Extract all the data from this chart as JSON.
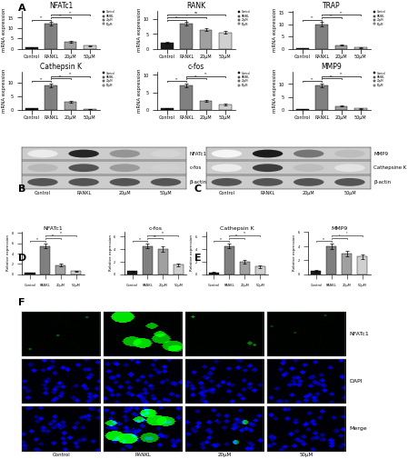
{
  "panel_A": {
    "charts": [
      {
        "title": "NFATc1",
        "ylabel": "mRNA expression",
        "categories": [
          "Control",
          "RANKL",
          "20μM",
          "50μM"
        ],
        "values": [
          0.5,
          12.0,
          3.5,
          1.5
        ],
        "errors": [
          0.1,
          0.8,
          0.4,
          0.2
        ],
        "colors": [
          "#1a1a1a",
          "#808080",
          "#a0a0a0",
          "#d0d0d0"
        ],
        "sig_lines": [
          [
            "Control",
            "RANKL",
            "**"
          ],
          [
            "RANKL",
            "20μM",
            "**"
          ],
          [
            "RANKL",
            "50μM",
            "**"
          ]
        ]
      },
      {
        "title": "RANK",
        "ylabel": "mRNA",
        "categories": [
          "Control",
          "RANKL",
          "20μM",
          "50μM"
        ],
        "values": [
          2.0,
          8.5,
          6.5,
          5.5
        ],
        "errors": [
          0.2,
          0.5,
          0.6,
          0.5
        ],
        "colors": [
          "#1a1a1a",
          "#808080",
          "#a0a0a0",
          "#d0d0d0"
        ],
        "sig_lines": [
          [
            "Control",
            "RANKL",
            "**"
          ],
          [
            "Control",
            "20μM",
            "*"
          ],
          [
            "Control",
            "50μM",
            "ns"
          ]
        ]
      },
      {
        "title": "TRAP",
        "ylabel": "mRNA",
        "categories": [
          "Control",
          "RANKL",
          "20μM",
          "50μM"
        ],
        "values": [
          0.3,
          10.0,
          1.5,
          0.5
        ],
        "errors": [
          0.05,
          0.9,
          0.2,
          0.1
        ],
        "colors": [
          "#1a1a1a",
          "#808080",
          "#a0a0a0",
          "#d0d0d0"
        ],
        "sig_lines": [
          [
            "Control",
            "RANKL",
            "**"
          ],
          [
            "RANKL",
            "20μM",
            "**"
          ],
          [
            "RANKL",
            "50μM",
            "**"
          ]
        ]
      },
      {
        "title": "Cathepsin K",
        "ylabel": "mRNA expression",
        "categories": [
          "Control",
          "RANKL",
          "20μM",
          "50μM"
        ],
        "values": [
          0.5,
          9.0,
          3.0,
          0.3
        ],
        "errors": [
          0.1,
          0.7,
          0.4,
          0.05
        ],
        "colors": [
          "#1a1a1a",
          "#808080",
          "#a0a0a0",
          "#d0d0d0"
        ],
        "sig_lines": [
          [
            "Control",
            "RANKL",
            "**"
          ],
          [
            "RANKL",
            "20μM",
            "**"
          ],
          [
            "RANKL",
            "50μM",
            "**"
          ]
        ]
      },
      {
        "title": "c-fos",
        "ylabel": "mRNA",
        "categories": [
          "Control",
          "RANKL",
          "20μM",
          "50μM"
        ],
        "values": [
          0.5,
          7.0,
          2.5,
          1.5
        ],
        "errors": [
          0.1,
          0.6,
          0.3,
          0.2
        ],
        "colors": [
          "#1a1a1a",
          "#808080",
          "#a0a0a0",
          "#d0d0d0"
        ],
        "sig_lines": [
          [
            "Control",
            "RANKL",
            "**"
          ],
          [
            "RANKL",
            "20μM",
            "**"
          ],
          [
            "RANKL",
            "50μM",
            "**"
          ]
        ]
      },
      {
        "title": "MMP9",
        "ylabel": "mRNA",
        "categories": [
          "Control",
          "RANKL",
          "20μM",
          "50μM"
        ],
        "values": [
          0.3,
          9.5,
          1.5,
          0.5
        ],
        "errors": [
          0.05,
          0.8,
          0.2,
          0.1
        ],
        "colors": [
          "#1a1a1a",
          "#808080",
          "#a0a0a0",
          "#d0d0d0"
        ],
        "sig_lines": [
          [
            "Control",
            "RANKL",
            "**"
          ],
          [
            "RANKL",
            "20μM",
            "**"
          ],
          [
            "RANKL",
            "50μM",
            "**"
          ]
        ]
      }
    ],
    "legend_labels": [
      "Control",
      "RANKL",
      "20μM",
      "50μM"
    ],
    "legend_colors": [
      "#1a1a1a",
      "#808080",
      "#a0a0a0",
      "#d0d0d0"
    ]
  },
  "panel_B": {
    "labels": [
      "Control",
      "RANKL",
      "20μM",
      "50μM"
    ],
    "band_names": [
      "NFATc1",
      "c-fos",
      "β-actin"
    ],
    "band_patterns_NFATc1": [
      0.08,
      0.92,
      0.45,
      0.18
    ],
    "band_patterns_cfos": [
      0.3,
      0.72,
      0.42,
      0.2
    ],
    "band_patterns_bactin": [
      0.72,
      0.72,
      0.72,
      0.72
    ]
  },
  "panel_C": {
    "labels": [
      "Control",
      "RANKL",
      "20μM",
      "50μM"
    ],
    "band_names": [
      "MMP9",
      "Cathepsine K",
      "β-actin"
    ],
    "band_patterns_MMP9": [
      0.04,
      0.96,
      0.58,
      0.28
    ],
    "band_patterns_cathK": [
      0.08,
      0.82,
      0.28,
      0.12
    ],
    "band_patterns_bactin": [
      0.72,
      0.72,
      0.72,
      0.72
    ]
  },
  "panel_D": {
    "charts": [
      {
        "title": "NFATc1",
        "ylabel": "Relative expression",
        "categories": [
          "Control",
          "RANKL",
          "20μM",
          "50μM"
        ],
        "values": [
          0.3,
          5.5,
          1.8,
          0.6
        ],
        "errors": [
          0.05,
          0.5,
          0.3,
          0.1
        ],
        "colors": [
          "#1a1a1a",
          "#808080",
          "#a0a0a0",
          "#d0d0d0"
        ],
        "sig_lines": [
          [
            "Control",
            "RANKL",
            "**"
          ],
          [
            "RANKL",
            "20μM",
            "**"
          ],
          [
            "RANKL",
            "50μM",
            "**"
          ]
        ]
      },
      {
        "title": "c-fos",
        "ylabel": "Relative expression",
        "categories": [
          "Control",
          "RANKL",
          "20μM",
          "50μM"
        ],
        "values": [
          0.5,
          4.5,
          4.0,
          1.5
        ],
        "errors": [
          0.1,
          0.4,
          0.5,
          0.2
        ],
        "colors": [
          "#1a1a1a",
          "#808080",
          "#a0a0a0",
          "#d0d0d0"
        ],
        "sig_lines": [
          [
            "Control",
            "RANKL",
            "**"
          ],
          [
            "RANKL",
            "20μM",
            "ns"
          ],
          [
            "RANKL",
            "50μM",
            "**"
          ]
        ]
      }
    ]
  },
  "panel_E": {
    "charts": [
      {
        "title": "Cathepsin K",
        "ylabel": "Relative expression",
        "categories": [
          "Control",
          "RANKL",
          "20μM",
          "50μM"
        ],
        "values": [
          0.3,
          4.5,
          2.0,
          1.2
        ],
        "errors": [
          0.05,
          0.4,
          0.3,
          0.2
        ],
        "colors": [
          "#1a1a1a",
          "#808080",
          "#a0a0a0",
          "#d0d0d0"
        ],
        "sig_lines": [
          [
            "Control",
            "RANKL",
            "**"
          ],
          [
            "RANKL",
            "20μM",
            "**"
          ],
          [
            "RANKL",
            "50μM",
            "**"
          ]
        ]
      },
      {
        "title": "MMP9",
        "ylabel": "Relative expression",
        "categories": [
          "Control",
          "RANKL",
          "20μM",
          "50μM"
        ],
        "values": [
          0.5,
          4.0,
          3.0,
          2.5
        ],
        "errors": [
          0.1,
          0.4,
          0.4,
          0.3
        ],
        "colors": [
          "#1a1a1a",
          "#808080",
          "#a0a0a0",
          "#d0d0d0"
        ],
        "sig_lines": [
          [
            "Control",
            "RANKL",
            "**"
          ],
          [
            "RANKL",
            "20μM",
            "*"
          ],
          [
            "RANKL",
            "50μM",
            "*"
          ]
        ]
      }
    ]
  },
  "panel_F": {
    "row_labels": [
      "NFATc1",
      "DAPI",
      "Merge"
    ],
    "col_labels": [
      "Control",
      "RANKL",
      "20μM",
      "50μM"
    ],
    "nfatc1_intensity": [
      0.02,
      0.85,
      0.15,
      0.05
    ],
    "dapi_intensity": [
      0.5,
      0.6,
      0.5,
      0.5
    ]
  },
  "background_color": "#ffffff",
  "font_size_title": 6,
  "font_size_label": 4.5,
  "font_size_tick": 4,
  "font_size_panel": 8
}
